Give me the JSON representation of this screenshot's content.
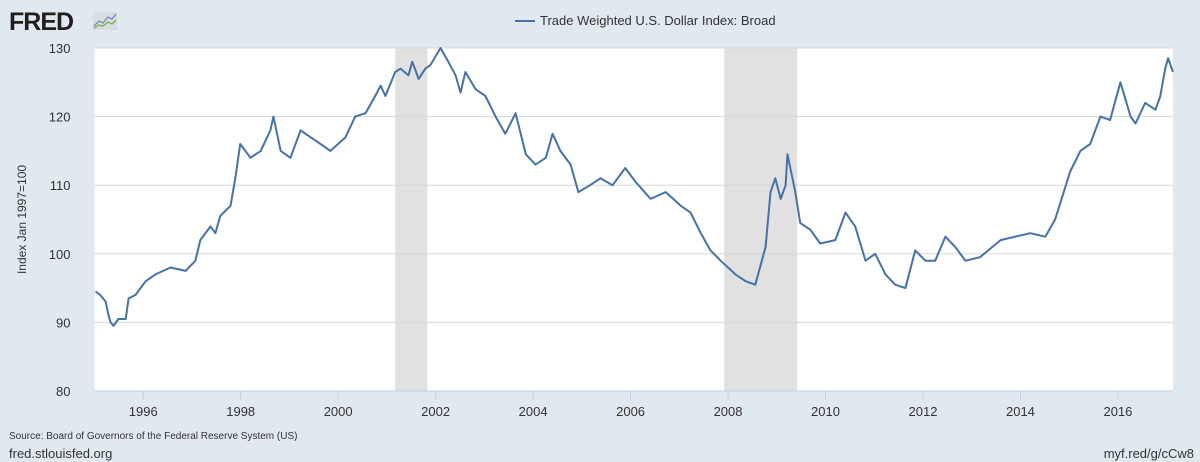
{
  "header": {
    "logo": "FRED",
    "logo_icon": "line-chart-icon"
  },
  "footer": {
    "source": "Source: Board of Governors of the Federal Reserve System (US)",
    "site": "fred.stlouisfed.org",
    "short_url": "myf.red/g/cCw8"
  },
  "chart_data": {
    "type": "line",
    "title": "",
    "legend": [
      "Trade Weighted U.S. Dollar Index: Broad"
    ],
    "legend_placement": "top-center",
    "xlabel": "",
    "ylabel": "Index Jan 1997=100",
    "xlim": [
      1995.0,
      2017.13
    ],
    "ylim": [
      80,
      130
    ],
    "yticks": [
      80,
      90,
      100,
      110,
      120,
      130
    ],
    "xticks": [
      "1996",
      "1998",
      "2000",
      "2002",
      "2004",
      "2006",
      "2008",
      "2010",
      "2012",
      "2014",
      "2016"
    ],
    "grid": "horizontal",
    "colors": {
      "line": "#4572a7",
      "recession": "#e1e1e1",
      "background": "#e1e9f0",
      "plot": "#ffffff"
    },
    "recessions": [
      [
        2001.17,
        2001.83
      ],
      [
        2007.92,
        2009.42
      ]
    ],
    "series": [
      {
        "name": "Trade Weighted U.S. Dollar Index: Broad",
        "points": [
          [
            1995.02,
            94.5
          ],
          [
            1995.12,
            94
          ],
          [
            1995.23,
            93
          ],
          [
            1995.29,
            91
          ],
          [
            1995.33,
            90
          ],
          [
            1995.39,
            89.5
          ],
          [
            1995.49,
            90.5
          ],
          [
            1995.64,
            90.5
          ],
          [
            1995.7,
            93.5
          ],
          [
            1995.84,
            94
          ],
          [
            1996.05,
            96
          ],
          [
            1996.25,
            97
          ],
          [
            1996.56,
            98
          ],
          [
            1996.87,
            97.5
          ],
          [
            1997.07,
            99
          ],
          [
            1997.17,
            102
          ],
          [
            1997.38,
            104
          ],
          [
            1997.48,
            103
          ],
          [
            1997.58,
            105.5
          ],
          [
            1997.79,
            107
          ],
          [
            1997.89,
            111
          ],
          [
            1997.99,
            116
          ],
          [
            1998.2,
            114
          ],
          [
            1998.41,
            115
          ],
          [
            1998.61,
            118
          ],
          [
            1998.67,
            120
          ],
          [
            1998.82,
            115
          ],
          [
            1999.02,
            114
          ],
          [
            1999.23,
            118
          ],
          [
            1999.43,
            117
          ],
          [
            1999.64,
            116
          ],
          [
            1999.84,
            115
          ],
          [
            2000.15,
            117
          ],
          [
            2000.35,
            120
          ],
          [
            2000.56,
            120.5
          ],
          [
            2000.76,
            123
          ],
          [
            2000.87,
            124.5
          ],
          [
            2000.97,
            123
          ],
          [
            2001.17,
            126.5
          ],
          [
            2001.28,
            127
          ],
          [
            2001.44,
            126
          ],
          [
            2001.52,
            128
          ],
          [
            2001.65,
            125.5
          ],
          [
            2001.79,
            127
          ],
          [
            2001.89,
            127.5
          ],
          [
            2002.1,
            130
          ],
          [
            2002.26,
            128
          ],
          [
            2002.41,
            126
          ],
          [
            2002.51,
            123.5
          ],
          [
            2002.61,
            126.5
          ],
          [
            2002.82,
            124
          ],
          [
            2003.02,
            123
          ],
          [
            2003.23,
            120
          ],
          [
            2003.43,
            117.5
          ],
          [
            2003.64,
            120.5
          ],
          [
            2003.85,
            114.5
          ],
          [
            2004.05,
            113
          ],
          [
            2004.26,
            114
          ],
          [
            2004.4,
            117.5
          ],
          [
            2004.56,
            115
          ],
          [
            2004.77,
            113
          ],
          [
            2004.93,
            109
          ],
          [
            2005.17,
            110
          ],
          [
            2005.38,
            111
          ],
          [
            2005.63,
            110
          ],
          [
            2005.89,
            112.5
          ],
          [
            2006.1,
            110.5
          ],
          [
            2006.41,
            108
          ],
          [
            2006.72,
            109
          ],
          [
            2007.03,
            107
          ],
          [
            2007.23,
            106
          ],
          [
            2007.44,
            103
          ],
          [
            2007.64,
            100.5
          ],
          [
            2007.85,
            99
          ],
          [
            2008.15,
            97
          ],
          [
            2008.36,
            96
          ],
          [
            2008.56,
            95.5
          ],
          [
            2008.77,
            101
          ],
          [
            2008.87,
            109
          ],
          [
            2008.97,
            111
          ],
          [
            2009.08,
            108
          ],
          [
            2009.18,
            110
          ],
          [
            2009.22,
            114.5
          ],
          [
            2009.38,
            109
          ],
          [
            2009.48,
            104.5
          ],
          [
            2009.69,
            103.5
          ],
          [
            2009.89,
            101.5
          ],
          [
            2010.2,
            102
          ],
          [
            2010.41,
            106
          ],
          [
            2010.61,
            104
          ],
          [
            2010.82,
            99
          ],
          [
            2011.02,
            100
          ],
          [
            2011.23,
            97
          ],
          [
            2011.43,
            95.5
          ],
          [
            2011.64,
            95
          ],
          [
            2011.84,
            100.5
          ],
          [
            2012.05,
            99
          ],
          [
            2012.25,
            99
          ],
          [
            2012.46,
            102.5
          ],
          [
            2012.66,
            101
          ],
          [
            2012.87,
            99
          ],
          [
            2013.17,
            99.5
          ],
          [
            2013.59,
            102
          ],
          [
            2013.89,
            102.5
          ],
          [
            2014.2,
            103
          ],
          [
            2014.51,
            102.5
          ],
          [
            2014.71,
            105
          ],
          [
            2015.02,
            112
          ],
          [
            2015.23,
            115
          ],
          [
            2015.43,
            116
          ],
          [
            2015.64,
            120
          ],
          [
            2015.84,
            119.5
          ],
          [
            2016.05,
            125
          ],
          [
            2016.26,
            120
          ],
          [
            2016.36,
            119
          ],
          [
            2016.56,
            122
          ],
          [
            2016.77,
            121
          ],
          [
            2016.87,
            123
          ],
          [
            2016.97,
            127
          ],
          [
            2017.03,
            128.5
          ],
          [
            2017.13,
            126.5
          ]
        ]
      }
    ]
  }
}
